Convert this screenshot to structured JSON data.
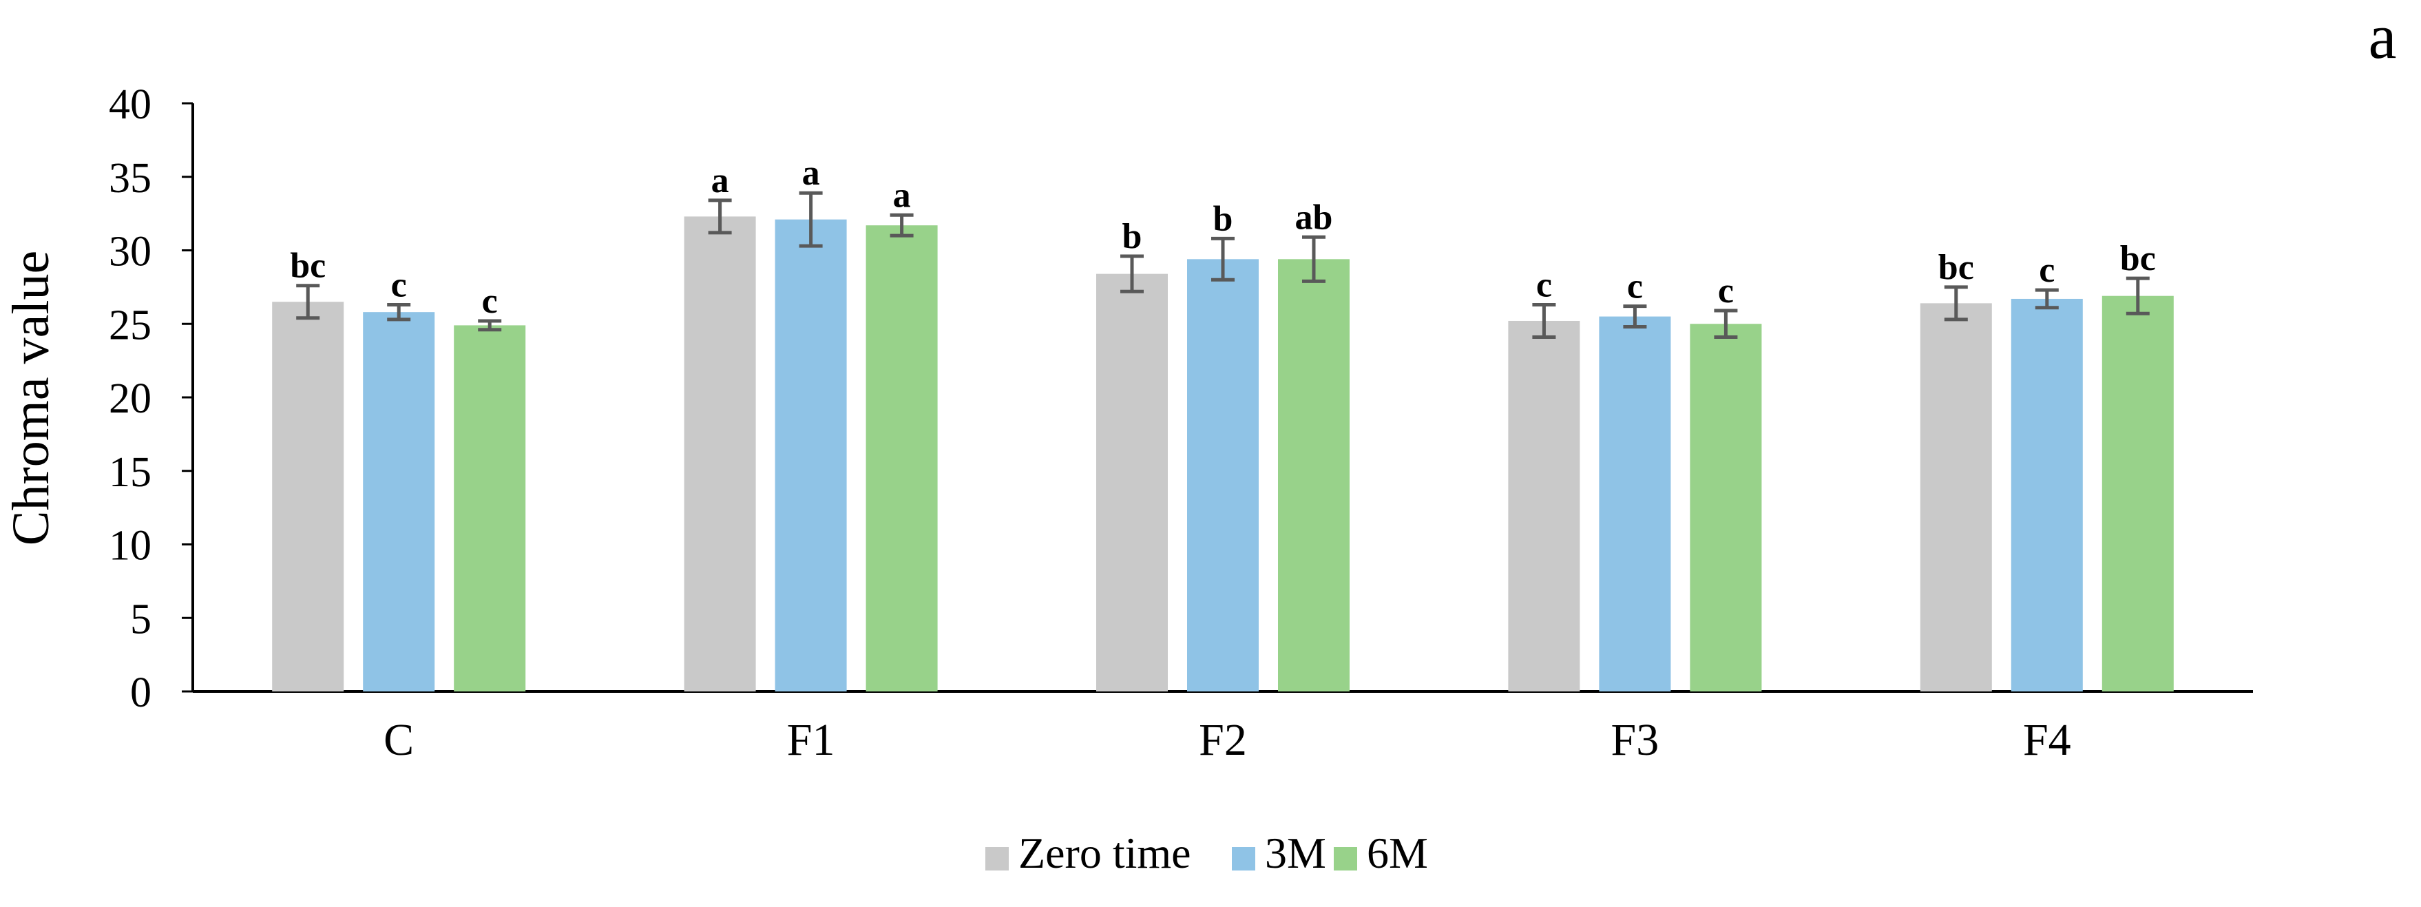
{
  "panel_label": "a",
  "chart_data": {
    "type": "bar",
    "title": "",
    "xlabel": "",
    "ylabel": "Chroma value",
    "ylim": [
      0,
      40
    ],
    "yticks": [
      0,
      5,
      10,
      15,
      20,
      25,
      30,
      35,
      40
    ],
    "grid": false,
    "legend_position": "bottom-center",
    "categories": [
      "C",
      "F1",
      "F2",
      "F3",
      "F4"
    ],
    "series": [
      {
        "name": "Zero time",
        "color": "#c9c9c9",
        "values": [
          26.5,
          32.3,
          28.4,
          25.2,
          26.4
        ],
        "errors": [
          1.1,
          1.1,
          1.2,
          1.1,
          1.1
        ],
        "labels": [
          "bc",
          "a",
          "b",
          "c",
          "bc"
        ]
      },
      {
        "name": "3M",
        "color": "#8fc3e6",
        "values": [
          25.8,
          32.1,
          29.4,
          25.5,
          26.7
        ],
        "errors": [
          0.5,
          1.8,
          1.4,
          0.7,
          0.6
        ],
        "labels": [
          "c",
          "a",
          "b",
          "c",
          "c"
        ]
      },
      {
        "name": "6M",
        "color": "#98d28a",
        "values": [
          24.9,
          31.7,
          29.4,
          25.0,
          26.9
        ],
        "errors": [
          0.3,
          0.7,
          1.5,
          0.9,
          1.2
        ],
        "labels": [
          "c",
          "a",
          "ab",
          "c",
          "bc"
        ]
      }
    ]
  }
}
